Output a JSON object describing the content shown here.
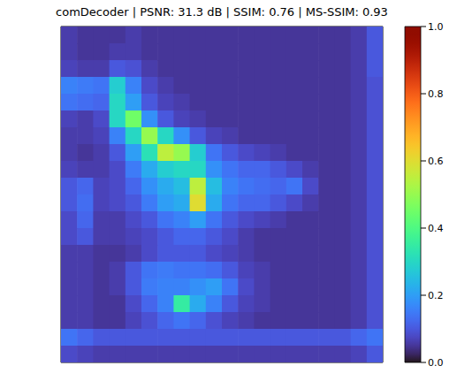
{
  "chart_data": {
    "type": "heatmap",
    "title": "comDecoder | PSNR: 31.3 dB | SSIM: 0.76 | MS-SSIM: 0.93",
    "color": "turbo",
    "tick_labels": false,
    "colorbar_lim": [
      0,
      1
    ],
    "colorbar_ticks": [
      {
        "value": 0,
        "label": "0.0"
      },
      0.2,
      0.4,
      0.6,
      0.8,
      {
        "value": 1,
        "label": "1.0"
      }
    ],
    "cells": [
      [
        0.06,
        0.05,
        0.05,
        0.05,
        0.06,
        0.05,
        0.05,
        0.05,
        0.05,
        0.05,
        0.05,
        0.05,
        0.05,
        0.05,
        0.05,
        0.05,
        0.05,
        0.05,
        0.06,
        0.1
      ],
      [
        0.06,
        0.05,
        0.05,
        0.06,
        0.06,
        0.05,
        0.05,
        0.05,
        0.05,
        0.05,
        0.05,
        0.05,
        0.05,
        0.05,
        0.05,
        0.05,
        0.05,
        0.05,
        0.06,
        0.1
      ],
      [
        0.07,
        0.06,
        0.06,
        0.1,
        0.09,
        0.06,
        0.05,
        0.05,
        0.05,
        0.05,
        0.05,
        0.05,
        0.05,
        0.05,
        0.05,
        0.05,
        0.05,
        0.05,
        0.06,
        0.1
      ],
      [
        0.16,
        0.15,
        0.14,
        0.28,
        0.16,
        0.08,
        0.06,
        0.05,
        0.05,
        0.05,
        0.05,
        0.05,
        0.05,
        0.05,
        0.05,
        0.05,
        0.05,
        0.05,
        0.06,
        0.09
      ],
      [
        0.14,
        0.13,
        0.12,
        0.3,
        0.2,
        0.1,
        0.07,
        0.06,
        0.05,
        0.05,
        0.05,
        0.05,
        0.05,
        0.05,
        0.05,
        0.05,
        0.05,
        0.05,
        0.06,
        0.09
      ],
      [
        0.07,
        0.06,
        0.08,
        0.3,
        0.45,
        0.18,
        0.1,
        0.07,
        0.06,
        0.05,
        0.05,
        0.05,
        0.05,
        0.05,
        0.05,
        0.05,
        0.05,
        0.05,
        0.06,
        0.09
      ],
      [
        0.06,
        0.06,
        0.07,
        0.16,
        0.3,
        0.5,
        0.3,
        0.18,
        0.1,
        0.07,
        0.06,
        0.05,
        0.05,
        0.05,
        0.05,
        0.05,
        0.05,
        0.05,
        0.06,
        0.09
      ],
      [
        0.06,
        0.05,
        0.06,
        0.1,
        0.2,
        0.32,
        0.55,
        0.5,
        0.28,
        0.14,
        0.1,
        0.08,
        0.07,
        0.06,
        0.05,
        0.05,
        0.05,
        0.05,
        0.06,
        0.09
      ],
      [
        0.07,
        0.06,
        0.06,
        0.08,
        0.15,
        0.22,
        0.28,
        0.3,
        0.3,
        0.18,
        0.14,
        0.12,
        0.12,
        0.1,
        0.08,
        0.06,
        0.05,
        0.05,
        0.06,
        0.09
      ],
      [
        0.1,
        0.12,
        0.07,
        0.08,
        0.12,
        0.18,
        0.22,
        0.25,
        0.55,
        0.25,
        0.16,
        0.14,
        0.13,
        0.12,
        0.14,
        0.08,
        0.05,
        0.05,
        0.06,
        0.09
      ],
      [
        0.1,
        0.13,
        0.07,
        0.08,
        0.1,
        0.15,
        0.2,
        0.22,
        0.6,
        0.22,
        0.14,
        0.12,
        0.12,
        0.1,
        0.08,
        0.06,
        0.05,
        0.05,
        0.06,
        0.09
      ],
      [
        0.08,
        0.12,
        0.06,
        0.06,
        0.08,
        0.1,
        0.14,
        0.16,
        0.2,
        0.14,
        0.1,
        0.08,
        0.07,
        0.06,
        0.05,
        0.05,
        0.05,
        0.05,
        0.06,
        0.09
      ],
      [
        0.08,
        0.1,
        0.06,
        0.06,
        0.07,
        0.08,
        0.1,
        0.12,
        0.12,
        0.1,
        0.08,
        0.06,
        0.05,
        0.05,
        0.05,
        0.05,
        0.05,
        0.05,
        0.06,
        0.09
      ],
      [
        0.06,
        0.06,
        0.05,
        0.05,
        0.06,
        0.08,
        0.1,
        0.1,
        0.1,
        0.08,
        0.07,
        0.06,
        0.05,
        0.05,
        0.05,
        0.05,
        0.05,
        0.05,
        0.06,
        0.09
      ],
      [
        0.06,
        0.06,
        0.05,
        0.06,
        0.1,
        0.14,
        0.15,
        0.14,
        0.14,
        0.13,
        0.1,
        0.07,
        0.06,
        0.05,
        0.05,
        0.05,
        0.05,
        0.05,
        0.06,
        0.09
      ],
      [
        0.06,
        0.06,
        0.05,
        0.06,
        0.1,
        0.15,
        0.16,
        0.16,
        0.18,
        0.2,
        0.14,
        0.08,
        0.06,
        0.05,
        0.05,
        0.05,
        0.05,
        0.05,
        0.06,
        0.09
      ],
      [
        0.06,
        0.06,
        0.05,
        0.05,
        0.08,
        0.12,
        0.16,
        0.35,
        0.22,
        0.16,
        0.1,
        0.07,
        0.06,
        0.05,
        0.05,
        0.05,
        0.05,
        0.05,
        0.06,
        0.09
      ],
      [
        0.06,
        0.06,
        0.05,
        0.05,
        0.07,
        0.09,
        0.12,
        0.14,
        0.12,
        0.09,
        0.07,
        0.06,
        0.05,
        0.05,
        0.05,
        0.05,
        0.05,
        0.05,
        0.06,
        0.09
      ],
      [
        0.14,
        0.12,
        0.1,
        0.1,
        0.1,
        0.1,
        0.1,
        0.1,
        0.1,
        0.1,
        0.1,
        0.1,
        0.1,
        0.1,
        0.1,
        0.1,
        0.1,
        0.1,
        0.12,
        0.14
      ],
      [
        0.08,
        0.07,
        0.06,
        0.06,
        0.06,
        0.06,
        0.06,
        0.06,
        0.06,
        0.06,
        0.06,
        0.06,
        0.06,
        0.06,
        0.06,
        0.06,
        0.06,
        0.06,
        0.07,
        0.1
      ]
    ]
  }
}
